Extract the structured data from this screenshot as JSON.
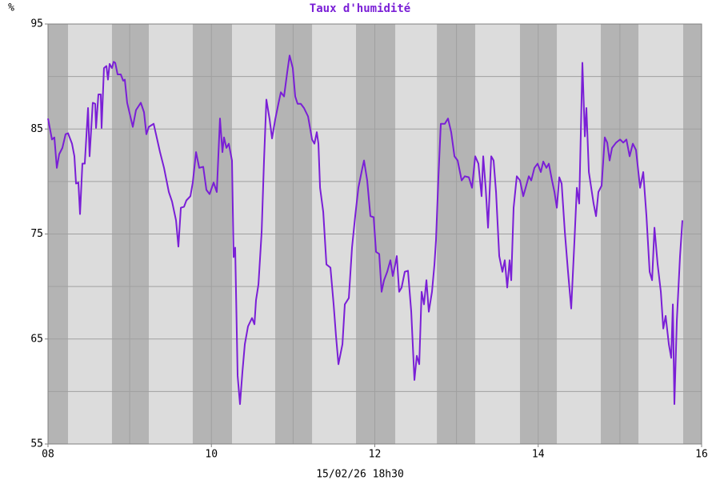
{
  "chart_data": {
    "type": "line",
    "title": "Taux d'humidité",
    "y_label": "%",
    "x_label": "15/02/26 18h30",
    "color": "#7a1fd6",
    "grid_color": "#a0a0a0",
    "background": "#dcdcdc",
    "night_color": "#b4b4b4",
    "xlim": [
      8,
      16
    ],
    "xticks": [
      {
        "value": 8,
        "label": "08"
      },
      10,
      12,
      14,
      16
    ],
    "xgrid": [
      9,
      10,
      11,
      12,
      13,
      14,
      15
    ],
    "ylim": [
      55,
      95
    ],
    "yticks": [
      55,
      65,
      75,
      85,
      95
    ],
    "ygrid": [
      60,
      65,
      70,
      75,
      80,
      85,
      90
    ],
    "night_bands": [
      [
        8,
        8.245
      ],
      [
        8.783,
        9.234
      ],
      [
        9.772,
        10.252
      ],
      [
        10.781,
        11.232
      ],
      [
        11.77,
        12.25
      ],
      [
        12.76,
        13.229
      ],
      [
        13.777,
        14.228
      ],
      [
        14.766,
        15.227
      ],
      [
        15.775,
        16
      ]
    ],
    "x": [
      8.0,
      8.049,
      8.078,
      8.108,
      8.137,
      8.176,
      8.215,
      8.245,
      8.294,
      8.323,
      8.343,
      8.372,
      8.392,
      8.421,
      8.45,
      8.49,
      8.509,
      8.548,
      8.578,
      8.588,
      8.617,
      8.646,
      8.656,
      8.685,
      8.715,
      8.734,
      8.754,
      8.783,
      8.803,
      8.823,
      8.852,
      8.891,
      8.92,
      8.94,
      8.969,
      9.038,
      9.077,
      9.136,
      9.175,
      9.204,
      9.234,
      9.293,
      9.322,
      9.371,
      9.42,
      9.479,
      9.518,
      9.567,
      9.596,
      9.626,
      9.665,
      9.694,
      9.743,
      9.772,
      9.812,
      9.851,
      9.9,
      9.939,
      9.978,
      10.027,
      10.066,
      10.105,
      10.135,
      10.154,
      10.184,
      10.213,
      10.252,
      10.272,
      10.291,
      10.321,
      10.35,
      10.38,
      10.409,
      10.448,
      10.497,
      10.527,
      10.546,
      10.576,
      10.615,
      10.644,
      10.673,
      10.713,
      10.742,
      10.781,
      10.82,
      10.85,
      10.889,
      10.928,
      10.957,
      10.996,
      11.026,
      11.055,
      11.094,
      11.133,
      11.183,
      11.232,
      11.261,
      11.29,
      11.31,
      11.33,
      11.369,
      11.408,
      11.457,
      11.496,
      11.525,
      11.555,
      11.604,
      11.633,
      11.682,
      11.721,
      11.76,
      11.799,
      11.848,
      11.868,
      11.907,
      11.946,
      11.986,
      12.015,
      12.054,
      12.083,
      12.113,
      12.152,
      12.191,
      12.22,
      12.25,
      12.269,
      12.298,
      12.328,
      12.367,
      12.406,
      12.446,
      12.485,
      12.514,
      12.544,
      12.573,
      12.602,
      12.632,
      12.661,
      12.7,
      12.73,
      12.749,
      12.779,
      12.808,
      12.857,
      12.896,
      12.935,
      12.975,
      13.014,
      13.063,
      13.102,
      13.151,
      13.19,
      13.229,
      13.268,
      13.307,
      13.327,
      13.357,
      13.386,
      13.425,
      13.454,
      13.484,
      13.523,
      13.562,
      13.591,
      13.621,
      13.65,
      13.67,
      13.699,
      13.738,
      13.777,
      13.817,
      13.846,
      13.885,
      13.915,
      13.954,
      13.993,
      14.032,
      14.062,
      14.101,
      14.13,
      14.169,
      14.199,
      14.228,
      14.258,
      14.287,
      14.326,
      14.365,
      14.404,
      14.444,
      14.473,
      14.502,
      14.541,
      14.571,
      14.59,
      14.62,
      14.649,
      14.678,
      14.708,
      14.737,
      14.776,
      14.815,
      14.845,
      14.874,
      14.904,
      14.953,
      15.002,
      15.041,
      15.08,
      15.119,
      15.158,
      15.197,
      15.247,
      15.286,
      15.325,
      15.364,
      15.394,
      15.423,
      15.462,
      15.501,
      15.531,
      15.56,
      15.599,
      15.628,
      15.648,
      15.667,
      15.697,
      15.736,
      15.765
    ],
    "values": [
      86.0,
      84.0,
      84.2,
      81.3,
      82.6,
      83.2,
      84.5,
      84.6,
      83.6,
      82.4,
      79.8,
      79.9,
      76.9,
      81.7,
      81.7,
      87.0,
      82.4,
      87.5,
      87.4,
      85.1,
      88.3,
      88.3,
      85.1,
      90.8,
      91.0,
      89.7,
      91.2,
      90.8,
      91.4,
      91.3,
      90.2,
      90.2,
      89.6,
      89.7,
      87.5,
      85.2,
      86.8,
      87.5,
      86.6,
      84.5,
      85.2,
      85.5,
      84.5,
      82.8,
      81.3,
      79.0,
      78.1,
      76.3,
      73.8,
      77.5,
      77.6,
      78.2,
      78.6,
      79.9,
      82.8,
      81.3,
      81.4,
      79.2,
      78.8,
      79.9,
      79.0,
      86.0,
      82.8,
      84.2,
      83.2,
      83.6,
      82.0,
      72.8,
      73.7,
      61.5,
      58.8,
      61.9,
      64.5,
      66.2,
      67.0,
      66.4,
      68.7,
      70.2,
      75.2,
      82.0,
      87.8,
      85.9,
      84.1,
      85.9,
      87.4,
      88.5,
      88.1,
      90.4,
      92.0,
      90.8,
      88.1,
      87.4,
      87.4,
      87.0,
      86.2,
      84.0,
      83.6,
      84.7,
      83.6,
      79.4,
      77.1,
      72.1,
      71.8,
      68.3,
      65.3,
      62.6,
      64.5,
      68.3,
      68.9,
      73.7,
      76.7,
      79.4,
      81.3,
      82.0,
      80.1,
      76.7,
      76.6,
      73.3,
      73.1,
      69.5,
      70.6,
      71.4,
      72.5,
      71.0,
      72.1,
      72.9,
      69.5,
      69.9,
      71.4,
      71.5,
      67.6,
      61.1,
      63.4,
      62.6,
      69.5,
      68.3,
      70.6,
      67.6,
      69.5,
      72.1,
      74.4,
      80.5,
      85.5,
      85.5,
      86.0,
      84.7,
      82.4,
      82.0,
      80.1,
      80.5,
      80.4,
      79.4,
      82.4,
      81.7,
      78.6,
      82.4,
      79.4,
      75.6,
      82.4,
      82.0,
      79.0,
      72.9,
      71.4,
      72.5,
      69.9,
      72.5,
      70.6,
      77.5,
      80.5,
      80.1,
      78.6,
      79.4,
      80.5,
      80.1,
      81.3,
      81.7,
      80.9,
      81.9,
      81.3,
      81.7,
      80.1,
      79.0,
      77.5,
      80.4,
      79.8,
      75.2,
      71.4,
      67.9,
      74.4,
      79.4,
      77.9,
      91.3,
      84.3,
      87.0,
      80.9,
      79.4,
      77.9,
      76.7,
      79.0,
      79.6,
      84.2,
      83.7,
      82.0,
      83.2,
      83.7,
      84.0,
      83.7,
      84.0,
      82.4,
      83.6,
      83.0,
      79.4,
      80.9,
      76.7,
      71.4,
      70.6,
      75.6,
      72.1,
      69.5,
      66.0,
      67.2,
      64.5,
      63.2,
      68.3,
      58.8,
      66.8,
      72.9,
      76.3
    ]
  }
}
